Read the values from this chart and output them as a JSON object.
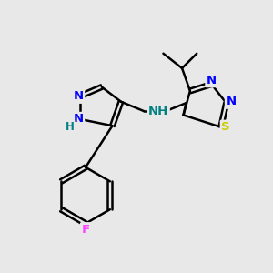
{
  "background_color": "#e8e8e8",
  "bond_color": "#000000",
  "atom_colors": {
    "N": "#0000ff",
    "S": "#cccc00",
    "F": "#ff44ff",
    "NH": "#008080",
    "C": "#000000"
  },
  "figsize": [
    3.0,
    3.0
  ],
  "dpi": 100,
  "xlim": [
    0,
    10
  ],
  "ylim": [
    0,
    10
  ]
}
